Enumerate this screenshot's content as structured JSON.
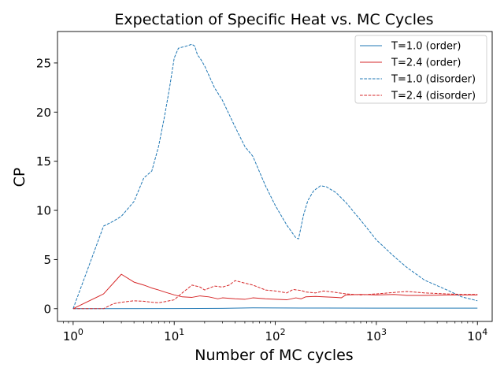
{
  "chart_data": {
    "type": "line",
    "title": "Expectation of Specific Heat vs. MC Cycles",
    "xlabel": "Number of MC cycles",
    "ylabel": "CP",
    "x_scale": "log",
    "xlim": [
      0.7,
      14000
    ],
    "ylim": [
      -1.3,
      28.2
    ],
    "x_ticks": [
      1,
      10,
      100,
      1000,
      10000
    ],
    "x_tick_labels": [
      {
        "base": "10",
        "exp": "0"
      },
      {
        "base": "10",
        "exp": "1"
      },
      {
        "base": "10",
        "exp": "2"
      },
      {
        "base": "10",
        "exp": "3"
      },
      {
        "base": "10",
        "exp": "4"
      }
    ],
    "y_ticks": [
      0,
      5,
      10,
      15,
      20,
      25
    ],
    "y_tick_labels": [
      "0",
      "5",
      "10",
      "15",
      "20",
      "25"
    ],
    "legend_position": "top-right",
    "grid": false,
    "series": [
      {
        "name": "T=1.0 (order)",
        "color": "#1f77b4",
        "dash": "solid",
        "points": [
          [
            1,
            0
          ],
          [
            10,
            0.01
          ],
          [
            30,
            0.03
          ],
          [
            60,
            0.08
          ],
          [
            100,
            0.07
          ],
          [
            300,
            0.06
          ],
          [
            1000,
            0.05
          ],
          [
            3000,
            0.05
          ],
          [
            10000,
            0.05
          ]
        ]
      },
      {
        "name": "T=2.4 (order)",
        "color": "#d62728",
        "dash": "solid",
        "points": [
          [
            1,
            0
          ],
          [
            2,
            1.5
          ],
          [
            3,
            3.5
          ],
          [
            4,
            2.7
          ],
          [
            5,
            2.4
          ],
          [
            6,
            2.1
          ],
          [
            7,
            1.9
          ],
          [
            8,
            1.7
          ],
          [
            10,
            1.4
          ],
          [
            12,
            1.2
          ],
          [
            15,
            1.15
          ],
          [
            18,
            1.3
          ],
          [
            22,
            1.2
          ],
          [
            27,
            1.0
          ],
          [
            30,
            1.1
          ],
          [
            40,
            1.0
          ],
          [
            50,
            0.95
          ],
          [
            60,
            1.1
          ],
          [
            80,
            1.0
          ],
          [
            100,
            0.95
          ],
          [
            130,
            0.9
          ],
          [
            160,
            1.1
          ],
          [
            180,
            1.0
          ],
          [
            200,
            1.2
          ],
          [
            250,
            1.25
          ],
          [
            300,
            1.2
          ],
          [
            400,
            1.15
          ],
          [
            450,
            1.1
          ],
          [
            500,
            1.4
          ],
          [
            700,
            1.45
          ],
          [
            1000,
            1.4
          ],
          [
            1500,
            1.45
          ],
          [
            2000,
            1.35
          ],
          [
            3000,
            1.35
          ],
          [
            5000,
            1.4
          ],
          [
            10000,
            1.4
          ]
        ]
      },
      {
        "name": "T=1.0 (disorder)",
        "color": "#1f77b4",
        "dash": "dashed",
        "points": [
          [
            1,
            0
          ],
          [
            2,
            8.4
          ],
          [
            2.5,
            8.9
          ],
          [
            3,
            9.4
          ],
          [
            4,
            10.9
          ],
          [
            5,
            13.3
          ],
          [
            6,
            14.0
          ],
          [
            7,
            16.5
          ],
          [
            8,
            19.5
          ],
          [
            9,
            22.5
          ],
          [
            10,
            25.5
          ],
          [
            11,
            26.5
          ],
          [
            13,
            26.7
          ],
          [
            15,
            26.9
          ],
          [
            16,
            26.7
          ],
          [
            17,
            25.8
          ],
          [
            18,
            25.5
          ],
          [
            20,
            24.7
          ],
          [
            25,
            22.5
          ],
          [
            30,
            21.2
          ],
          [
            40,
            18.5
          ],
          [
            50,
            16.5
          ],
          [
            60,
            15.5
          ],
          [
            80,
            12.5
          ],
          [
            100,
            10.5
          ],
          [
            130,
            8.5
          ],
          [
            160,
            7.2
          ],
          [
            170,
            7.1
          ],
          [
            190,
            9.5
          ],
          [
            210,
            11.0
          ],
          [
            240,
            12.0
          ],
          [
            280,
            12.5
          ],
          [
            320,
            12.4
          ],
          [
            400,
            11.8
          ],
          [
            500,
            10.8
          ],
          [
            700,
            9.0
          ],
          [
            1000,
            7.0
          ],
          [
            1500,
            5.3
          ],
          [
            2000,
            4.2
          ],
          [
            3000,
            2.9
          ],
          [
            5000,
            1.9
          ],
          [
            7000,
            1.2
          ],
          [
            10000,
            0.8
          ]
        ]
      },
      {
        "name": "T=2.4 (disorder)",
        "color": "#d62728",
        "dash": "dashed",
        "points": [
          [
            1,
            0
          ],
          [
            2,
            0
          ],
          [
            2.5,
            0.5
          ],
          [
            3,
            0.65
          ],
          [
            4,
            0.8
          ],
          [
            5,
            0.75
          ],
          [
            6,
            0.65
          ],
          [
            7,
            0.6
          ],
          [
            8,
            0.7
          ],
          [
            10,
            0.9
          ],
          [
            12,
            1.6
          ],
          [
            15,
            2.4
          ],
          [
            18,
            2.2
          ],
          [
            20,
            1.9
          ],
          [
            25,
            2.3
          ],
          [
            30,
            2.2
          ],
          [
            35,
            2.4
          ],
          [
            40,
            2.85
          ],
          [
            50,
            2.6
          ],
          [
            60,
            2.4
          ],
          [
            80,
            1.9
          ],
          [
            100,
            1.8
          ],
          [
            130,
            1.6
          ],
          [
            150,
            1.95
          ],
          [
            180,
            1.85
          ],
          [
            200,
            1.7
          ],
          [
            250,
            1.6
          ],
          [
            300,
            1.8
          ],
          [
            400,
            1.65
          ],
          [
            500,
            1.5
          ],
          [
            700,
            1.4
          ],
          [
            1000,
            1.5
          ],
          [
            1500,
            1.65
          ],
          [
            2000,
            1.75
          ],
          [
            3000,
            1.6
          ],
          [
            5000,
            1.5
          ],
          [
            7000,
            1.45
          ],
          [
            10000,
            1.45
          ]
        ]
      }
    ]
  }
}
